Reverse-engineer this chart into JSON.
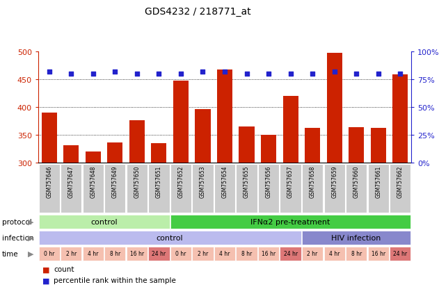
{
  "title": "GDS4232 / 218771_at",
  "samples": [
    "GSM757646",
    "GSM757647",
    "GSM757648",
    "GSM757649",
    "GSM757650",
    "GSM757651",
    "GSM757652",
    "GSM757653",
    "GSM757654",
    "GSM757655",
    "GSM757656",
    "GSM757657",
    "GSM757658",
    "GSM757659",
    "GSM757660",
    "GSM757661",
    "GSM757662"
  ],
  "counts": [
    390,
    331,
    320,
    336,
    376,
    335,
    447,
    396,
    467,
    365,
    350,
    420,
    362,
    497,
    364,
    362,
    459
  ],
  "percentile_ranks": [
    82,
    80,
    80,
    82,
    80,
    80,
    80,
    82,
    82,
    80,
    80,
    80,
    80,
    82,
    80,
    80,
    80
  ],
  "ylim_left": [
    300,
    500
  ],
  "ylim_right": [
    0,
    100
  ],
  "yticks_left": [
    300,
    350,
    400,
    450,
    500
  ],
  "yticks_right": [
    0,
    25,
    50,
    75,
    100
  ],
  "bar_color": "#cc2200",
  "dot_color": "#2222cc",
  "protocol_labels": [
    {
      "text": "control",
      "start": 0,
      "end": 5,
      "color": "#bbeeaa"
    },
    {
      "text": "IFNα2 pre-treatment",
      "start": 6,
      "end": 16,
      "color": "#44cc44"
    }
  ],
  "infection_labels": [
    {
      "text": "control",
      "start": 0,
      "end": 11,
      "color": "#bbbbee"
    },
    {
      "text": "HIV infection",
      "start": 12,
      "end": 16,
      "color": "#8888cc"
    }
  ],
  "time_labels": [
    "0 hr",
    "2 hr",
    "4 hr",
    "8 hr",
    "16 hr",
    "24 hr",
    "0 hr",
    "2 hr",
    "4 hr",
    "8 hr",
    "16 hr",
    "24 hr",
    "2 hr",
    "4 hr",
    "8 hr",
    "16 hr",
    "24 hr"
  ],
  "time_colors": [
    "#f5c0b0",
    "#f5c0b0",
    "#f5c0b0",
    "#f5c0b0",
    "#f5c0b0",
    "#dd7777",
    "#f5c0b0",
    "#f5c0b0",
    "#f5c0b0",
    "#f5c0b0",
    "#f5c0b0",
    "#dd7777",
    "#f5c0b0",
    "#f5c0b0",
    "#f5c0b0",
    "#f5c0b0",
    "#dd7777"
  ],
  "legend_count_color": "#cc2200",
  "legend_dot_color": "#2222cc",
  "sample_box_color": "#cccccc",
  "row_label_color": "#888888"
}
